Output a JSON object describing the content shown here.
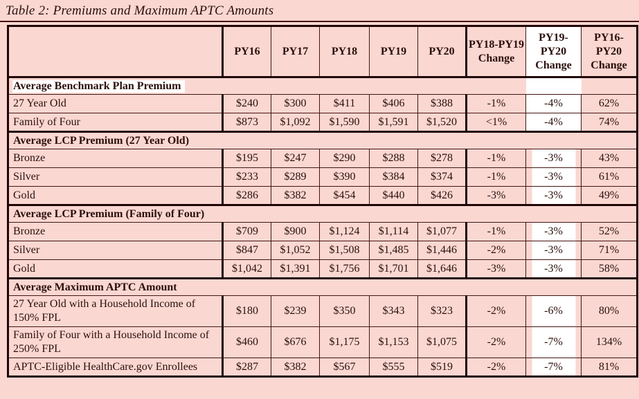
{
  "title": "Table 2: Premiums and Maximum APTC Amounts",
  "colors": {
    "page_background": "#FBD7D2",
    "highlight": "#FFFFFF",
    "text": "#2B0F0A",
    "border_thin": "#451410",
    "border_thick": "#1F0605"
  },
  "table": {
    "columns": [
      "",
      "PY16",
      "PY17",
      "PY18",
      "PY19",
      "PY20",
      "PY18-PY19 Change",
      "PY19-PY20 Change",
      "PY16-PY20 Change"
    ],
    "column_keys": [
      "py16",
      "py17",
      "py18",
      "py19",
      "py20",
      "py18_py19_change",
      "py19_py20_change",
      "py16_py20_change"
    ],
    "sections": [
      {
        "header": "Average Benchmark Plan Premium",
        "label_highlight": true,
        "c2_white_block": true,
        "c2_fill": "full",
        "rows": [
          {
            "label": "27 Year Old",
            "values": [
              "$240",
              "$300",
              "$411",
              "$406",
              "$388",
              "-1%",
              "-4%",
              "62%"
            ]
          },
          {
            "label": "Family of Four",
            "values": [
              "$873",
              "$1,092",
              "$1,590",
              "$1,591",
              "$1,520",
              "<1%",
              "-4%",
              "74%"
            ]
          }
        ]
      },
      {
        "header": "Average LCP Premium (27 Year Old)",
        "label_highlight": false,
        "c2_white_block": false,
        "c2_fill": "inset",
        "rows": [
          {
            "label": "Bronze",
            "values": [
              "$195",
              "$247",
              "$290",
              "$288",
              "$278",
              "-1%",
              "-3%",
              "43%"
            ]
          },
          {
            "label": "Silver",
            "values": [
              "$233",
              "$289",
              "$390",
              "$384",
              "$374",
              "-1%",
              "-3%",
              "61%"
            ]
          },
          {
            "label": "Gold",
            "values": [
              "$286",
              "$382",
              "$454",
              "$440",
              "$426",
              "-3%",
              "-3%",
              "49%"
            ]
          }
        ]
      },
      {
        "header": "Average LCP Premium (Family of Four)",
        "label_highlight": false,
        "c2_white_block": false,
        "c2_fill": "inset",
        "rows": [
          {
            "label": "Bronze",
            "values": [
              "$709",
              "$900",
              "$1,124",
              "$1,114",
              "$1,077",
              "-1%",
              "-3%",
              "52%"
            ]
          },
          {
            "label": "Silver",
            "values": [
              "$847",
              "$1,052",
              "$1,508",
              "$1,485",
              "$1,446",
              "-2%",
              "-3%",
              "71%"
            ]
          },
          {
            "label": "Gold",
            "values": [
              "$1,042",
              "$1,391",
              "$1,756",
              "$1,701",
              "$1,646",
              "-3%",
              "-3%",
              "58%"
            ]
          }
        ]
      },
      {
        "header": "Average Maximum APTC Amount",
        "label_highlight": false,
        "c2_white_block": false,
        "c2_fill": "inset",
        "rows": [
          {
            "label": "27 Year Old with a Household Income of 150% FPL",
            "values": [
              "$180",
              "$239",
              "$350",
              "$343",
              "$323",
              "-2%",
              "-6%",
              "80%"
            ]
          },
          {
            "label": "Family of Four with a Household Income of 250% FPL",
            "values": [
              "$460",
              "$676",
              "$1,175",
              "$1,153",
              "$1,075",
              "-2%",
              "-7%",
              "134%"
            ]
          },
          {
            "label": "APTC-Eligible HealthCare.gov Enrollees",
            "values": [
              "$287",
              "$382",
              "$567",
              "$555",
              "$519",
              "-2%",
              "-7%",
              "81%"
            ]
          }
        ]
      }
    ]
  }
}
